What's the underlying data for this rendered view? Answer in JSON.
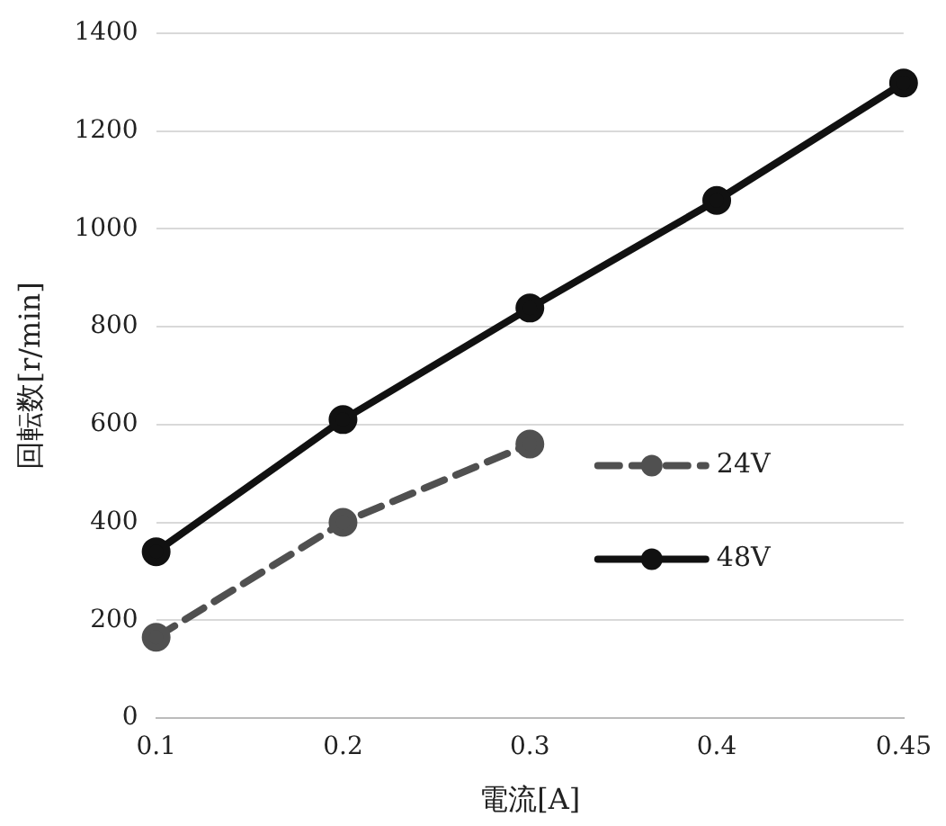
{
  "chart_data": {
    "type": "line",
    "xlabel": "電流[A]",
    "ylabel": "回転数[r/min]",
    "categories": [
      "0.1",
      "0.2",
      "0.3",
      "0.4",
      "0.45"
    ],
    "series": [
      {
        "name": "24V",
        "color": "#505050",
        "line_style": "dashed",
        "values": [
          165,
          400,
          560,
          null,
          null
        ]
      },
      {
        "name": "48V",
        "color": "#111111",
        "line_style": "solid",
        "values": [
          340,
          610,
          838,
          1058,
          1298
        ]
      }
    ],
    "ylim": [
      0,
      1400
    ],
    "yticks": [
      0,
      200,
      400,
      600,
      800,
      1000,
      1200,
      1400
    ],
    "grid": "y",
    "legend": "right",
    "marker": "circle"
  }
}
